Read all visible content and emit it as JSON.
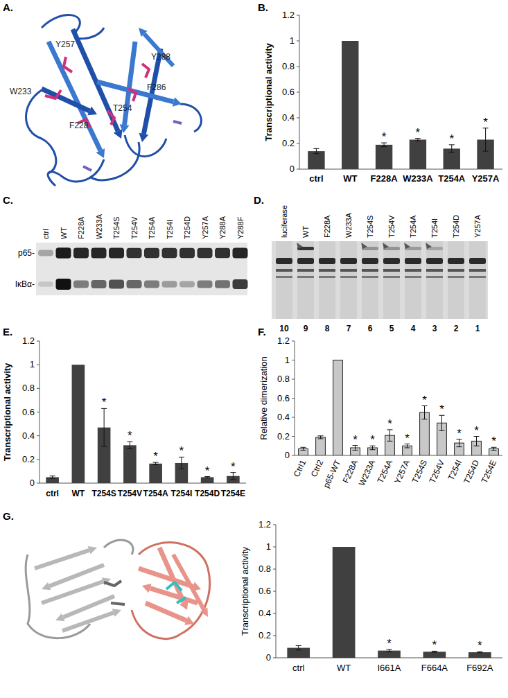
{
  "panel_labels": [
    "A.",
    "B.",
    "C.",
    "D.",
    "E.",
    "F.",
    "G."
  ],
  "structure_a": {
    "residues": [
      "Y257",
      "Y288",
      "W233",
      "F286",
      "T254",
      "F228"
    ]
  },
  "chart_data": [
    {
      "type": "bar",
      "y_label": "Transcriptional activity",
      "categories": [
        "ctrl",
        "WT",
        "F228A",
        "W233A",
        "T254A",
        "Y257A"
      ],
      "values": [
        0.14,
        1,
        0.19,
        0.23,
        0.16,
        0.23
      ],
      "errors": [
        0.02,
        null,
        0.015,
        0.01,
        0.03,
        0.09
      ],
      "significant": [
        false,
        false,
        true,
        true,
        true,
        true
      ],
      "significance_label": "*",
      "color": "#404040",
      "ylim": [
        0,
        1.2
      ],
      "yticks": [
        0,
        0.2,
        0.4,
        0.6,
        0.8,
        1,
        1.2
      ]
    },
    {
      "type": "bar",
      "y_label": "Transcriptional activity",
      "categories": [
        "ctrl",
        "WT",
        "T254S",
        "T254V",
        "T254A",
        "T254I",
        "T254D",
        "T254E"
      ],
      "values": [
        0.05,
        1,
        0.47,
        0.32,
        0.165,
        0.17,
        0.05,
        0.06
      ],
      "errors": [
        0.01,
        null,
        0.16,
        0.03,
        0.01,
        0.05,
        0.005,
        0.03
      ],
      "significant": [
        false,
        false,
        true,
        true,
        true,
        true,
        true,
        true
      ],
      "significance_label": "*",
      "color": "#404040",
      "ylim": [
        0,
        1.2
      ],
      "yticks": [
        0,
        0.2,
        0.4,
        0.6,
        0.8,
        1,
        1.2
      ]
    },
    {
      "type": "bar",
      "y_label": "Relative dimerization",
      "categories": [
        "Ctrl1",
        "Ctrl2",
        "p65-WT",
        "F228A",
        "W233A",
        "T254A",
        "Y257A",
        "T254S",
        "T254V",
        "T254I",
        "T254D",
        "T254E"
      ],
      "values": [
        0.07,
        0.19,
        1,
        0.08,
        0.08,
        0.21,
        0.1,
        0.45,
        0.34,
        0.13,
        0.15,
        0.07
      ],
      "errors": [
        0.015,
        0.015,
        null,
        0.025,
        0.02,
        0.06,
        0.02,
        0.07,
        0.08,
        0.04,
        0.05,
        0.015
      ],
      "significant": [
        false,
        false,
        false,
        true,
        true,
        true,
        true,
        true,
        true,
        true,
        true,
        true
      ],
      "significance_label": "*",
      "color": "#c8c8c8",
      "ylim": [
        0,
        1.2
      ],
      "yticks": [
        0,
        0.2,
        0.4,
        0.6,
        0.8,
        1,
        1.2
      ]
    },
    {
      "type": "bar",
      "y_label": "Transcriptional activity",
      "categories": [
        "ctrl",
        "WT",
        "I661A",
        "F664A",
        "F692A"
      ],
      "values": [
        0.09,
        1,
        0.065,
        0.055,
        0.05
      ],
      "errors": [
        0.02,
        null,
        0.01,
        0.005,
        0.005
      ],
      "significant": [
        false,
        false,
        true,
        true,
        true
      ],
      "significance_label": "*",
      "color": "#404040",
      "ylim": [
        0,
        1.2
      ],
      "yticks": [
        0,
        0.2,
        0.4,
        0.6,
        0.8,
        1,
        1.2
      ]
    }
  ],
  "blot_c": {
    "lanes": [
      "ctrl",
      "WT",
      "F228A",
      "W233A",
      "T254S",
      "T254V",
      "T254A",
      "T254I",
      "T254D",
      "Y257A",
      "Y288A",
      "Y288F"
    ],
    "rows": [
      "p65-",
      "IκBα-"
    ],
    "band_strength": [
      [
        0.3,
        0.95,
        0.9,
        0.9,
        0.9,
        0.85,
        0.85,
        0.85,
        0.85,
        0.85,
        0.85,
        0.9
      ],
      [
        0.15,
        1,
        0.5,
        0.6,
        0.7,
        0.6,
        0.5,
        0.35,
        0.3,
        0.5,
        0.55,
        0.8
      ]
    ]
  },
  "gel_d": {
    "lanes": [
      "luciferase",
      "WT",
      "F228A",
      "W233A",
      "T254S",
      "T254V",
      "T254A",
      "T254I",
      "T254D",
      "Y257A"
    ],
    "lane_numbers": [
      10,
      9,
      8,
      7,
      6,
      5,
      4,
      3,
      2,
      1
    ],
    "arrows": [
      false,
      true,
      false,
      false,
      true,
      true,
      true,
      true,
      false,
      false
    ],
    "shifted_band_strength": [
      0,
      0.9,
      0,
      0,
      0.35,
      0.35,
      0.3,
      0.25,
      0,
      0
    ]
  }
}
